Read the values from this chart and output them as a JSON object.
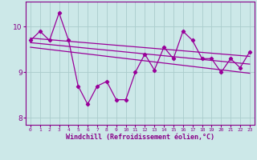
{
  "x": [
    0,
    1,
    2,
    3,
    4,
    5,
    6,
    7,
    8,
    9,
    10,
    11,
    12,
    13,
    14,
    15,
    16,
    17,
    18,
    19,
    20,
    21,
    22,
    23
  ],
  "y_main": [
    9.7,
    9.9,
    9.7,
    10.3,
    9.7,
    8.7,
    8.3,
    8.7,
    8.8,
    8.4,
    8.4,
    9.0,
    9.4,
    9.05,
    9.55,
    9.3,
    9.9,
    9.7,
    9.3,
    9.3,
    9.0,
    9.3,
    9.1,
    9.45
  ],
  "trend_upper_start": 9.75,
  "trend_upper_end": 9.35,
  "trend_lower_start": 9.55,
  "trend_lower_end": 8.98,
  "trend_mid_start": 9.65,
  "trend_mid_end": 9.18,
  "line_color": "#990099",
  "bg_color": "#cce8e8",
  "grid_color": "#aacccc",
  "spine_color": "#880088",
  "xlabel": "Windchill (Refroidissement éolien,°C)",
  "ylim": [
    7.85,
    10.55
  ],
  "xlim": [
    -0.5,
    23.5
  ],
  "yticks": [
    8,
    9,
    10
  ],
  "xticks": [
    0,
    1,
    2,
    3,
    4,
    5,
    6,
    7,
    8,
    9,
    10,
    11,
    12,
    13,
    14,
    15,
    16,
    17,
    18,
    19,
    20,
    21,
    22,
    23
  ]
}
